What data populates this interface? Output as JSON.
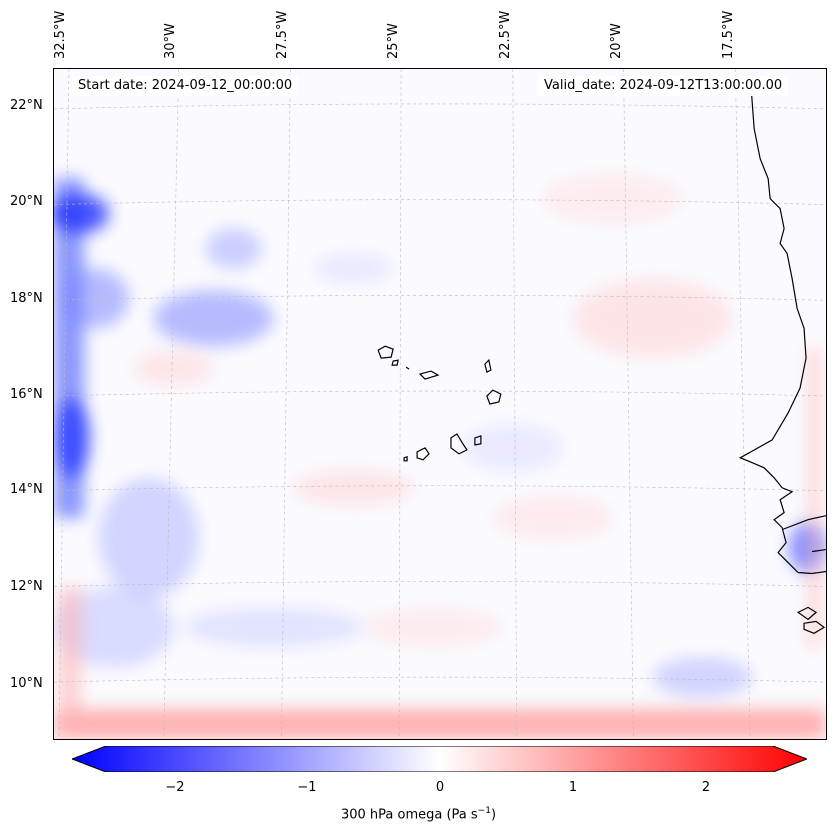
{
  "map": {
    "lon_labels": [
      "32.5°W",
      "30°W",
      "27.5°W",
      "25°W",
      "22.5°W",
      "20°W",
      "17.5°W"
    ],
    "lat_labels": [
      "22°N",
      "20°N",
      "18°N",
      "16°N",
      "14°N",
      "12°N",
      "10°N"
    ],
    "start_date": "Start date: 2024-09-12_00:00:00",
    "valid_date": "Valid_date: 2024-09-12T13:00:00.00",
    "colors": {
      "negative": "#0000ff",
      "zero": "#ffffff",
      "positive": "#ff0000",
      "coast": "#000000",
      "grid": "#bbbbbb"
    }
  },
  "colorbar": {
    "ticks": [
      "−2",
      "−1",
      "0",
      "1",
      "2"
    ],
    "range": [
      -2.75,
      2.75
    ],
    "label": "300 hPa omega (Pa s",
    "label_sup": "−1",
    "label_end": ")"
  }
}
